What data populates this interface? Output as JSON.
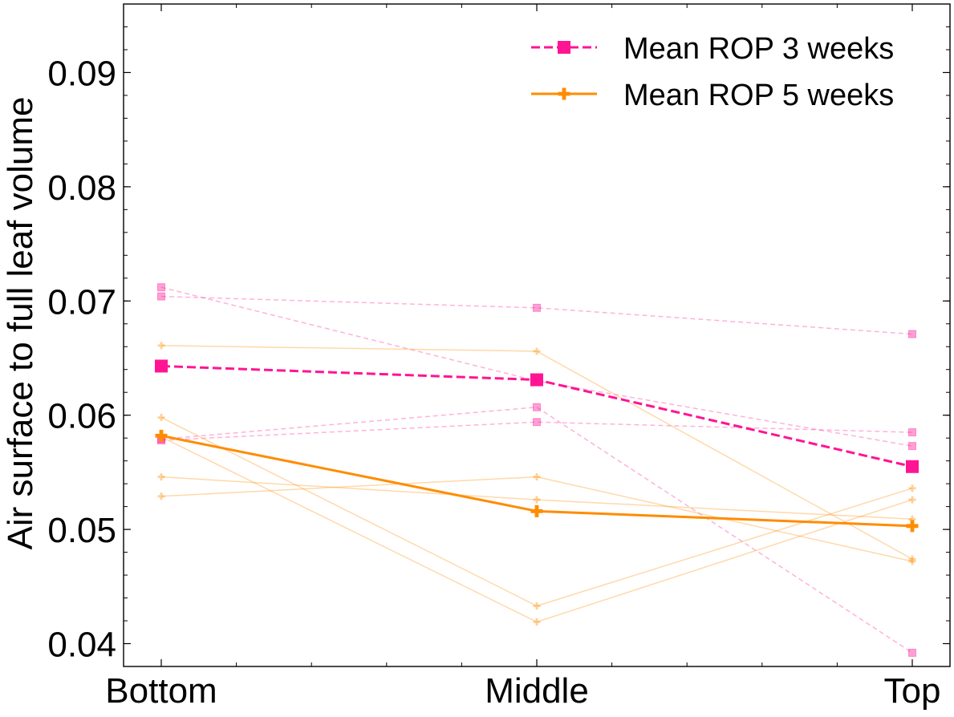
{
  "chart_data": {
    "type": "line",
    "categories": [
      "Bottom",
      "Middle",
      "Top"
    ],
    "xlabel": "",
    "ylabel": "Air surface to full leaf volume",
    "ylim": [
      0.038,
      0.096
    ],
    "yticks": [
      0.04,
      0.05,
      0.06,
      0.07,
      0.08,
      0.09
    ],
    "ytick_labels": [
      "0.04",
      "0.05",
      "0.06",
      "0.07",
      "0.08",
      "0.09"
    ],
    "grid": false,
    "legend_position": "top-right",
    "colors": {
      "rop3": "#ff1493",
      "rop5": "#ff8c00"
    },
    "series": [
      {
        "name": "Mean ROP 3 weeks",
        "group": "rop3",
        "role": "mean",
        "marker": "square",
        "dash": "dashed",
        "values": [
          0.0643,
          0.0631,
          0.0555
        ]
      },
      {
        "name": "Mean ROP 5 weeks",
        "group": "rop5",
        "role": "mean",
        "marker": "plus",
        "dash": "solid",
        "values": [
          0.0582,
          0.0516,
          0.0503
        ]
      },
      {
        "group": "rop3",
        "role": "individual",
        "marker": "square",
        "dash": "dashed",
        "values": [
          0.0712,
          0.063,
          0.0573
        ]
      },
      {
        "group": "rop3",
        "role": "individual",
        "marker": "square",
        "dash": "dashed",
        "values": [
          0.0704,
          0.0694,
          0.0671
        ]
      },
      {
        "group": "rop3",
        "role": "individual",
        "marker": "square",
        "dash": "dashed",
        "values": [
          0.0578,
          0.0594,
          0.0585
        ]
      },
      {
        "group": "rop3",
        "role": "individual",
        "marker": "square",
        "dash": "dashed",
        "values": [
          0.0579,
          0.0607,
          0.0392
        ]
      },
      {
        "group": "rop5",
        "role": "individual",
        "marker": "plus",
        "dash": "solid",
        "values": [
          0.0661,
          0.0656,
          0.0474
        ]
      },
      {
        "group": "rop5",
        "role": "individual",
        "marker": "plus",
        "dash": "solid",
        "values": [
          0.0598,
          0.0433,
          0.0536
        ]
      },
      {
        "group": "rop5",
        "role": "individual",
        "marker": "plus",
        "dash": "solid",
        "values": [
          0.0581,
          0.0419,
          0.0526
        ]
      },
      {
        "group": "rop5",
        "role": "individual",
        "marker": "plus",
        "dash": "solid",
        "values": [
          0.0546,
          0.0526,
          0.0509
        ]
      },
      {
        "group": "rop5",
        "role": "individual",
        "marker": "plus",
        "dash": "solid",
        "values": [
          0.0529,
          0.0546,
          0.0472
        ]
      }
    ]
  }
}
